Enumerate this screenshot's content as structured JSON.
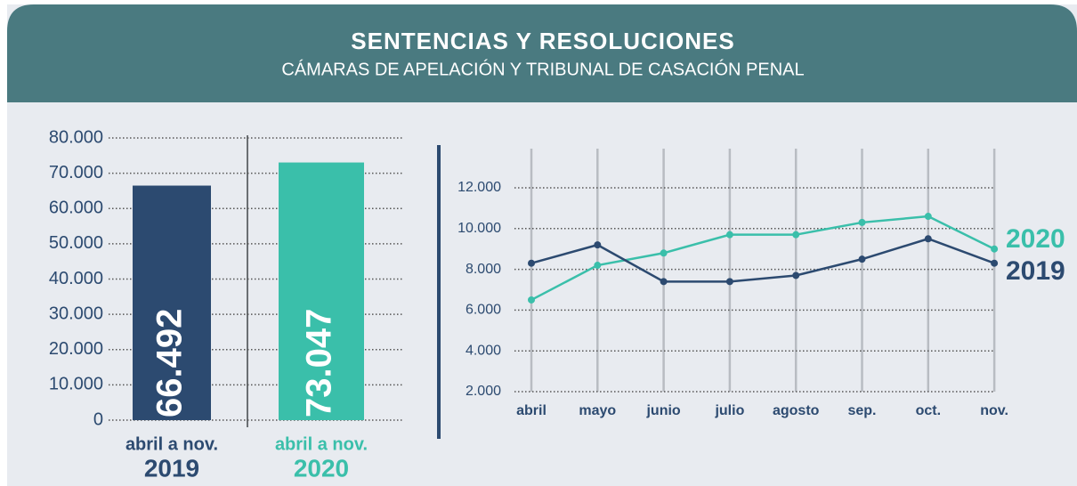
{
  "header": {
    "title": "SENTENCIAS Y RESOLUCIONES",
    "subtitle": "CÁMARAS DE APELACIÓN Y TRIBUNAL DE CASACIÓN PENAL"
  },
  "chart_data": [
    {
      "type": "bar",
      "categories": [
        "2019",
        "2020"
      ],
      "category_period": [
        "abril a nov.",
        "abril a nov."
      ],
      "values": [
        66492,
        73047
      ],
      "value_labels": [
        "66.492",
        "73.047"
      ],
      "colors": [
        "#2c4a70",
        "#3abfaa"
      ],
      "ylim": [
        0,
        80000
      ],
      "yticks": [
        0,
        {
          "value": 10000,
          "label": "10.000"
        },
        {
          "value": 20000,
          "label": "20.000"
        },
        {
          "value": 30000,
          "label": "30.000"
        },
        {
          "value": 40000,
          "label": "40.000"
        },
        {
          "value": 50000,
          "label": "50.000"
        },
        {
          "value": 60000,
          "label": "60.000"
        },
        {
          "value": 70000,
          "label": "70.000"
        },
        {
          "value": 80000,
          "label": "80.000"
        }
      ],
      "grid": true
    },
    {
      "type": "line",
      "categories": [
        "abril",
        "mayo",
        "junio",
        "julio",
        "agosto",
        "sep.",
        "oct.",
        "nov."
      ],
      "series": [
        {
          "name": "2020",
          "color": "#3abfaa",
          "values": [
            6500,
            8200,
            8800,
            9700,
            9700,
            10300,
            10600,
            9000
          ]
        },
        {
          "name": "2019",
          "color": "#2c4a70",
          "values": [
            8300,
            9200,
            7400,
            7400,
            7700,
            8500,
            9500,
            8300
          ]
        }
      ],
      "ylim": [
        2000,
        12000
      ],
      "yticks": [
        {
          "value": 2000,
          "label": "2.000"
        },
        {
          "value": 4000,
          "label": "4.000"
        },
        {
          "value": 6000,
          "label": "6.000"
        },
        {
          "value": 8000,
          "label": "8.000"
        },
        {
          "value": 10000,
          "label": "10.000"
        },
        {
          "value": 12000,
          "label": "12.000"
        }
      ],
      "grid": true
    }
  ]
}
